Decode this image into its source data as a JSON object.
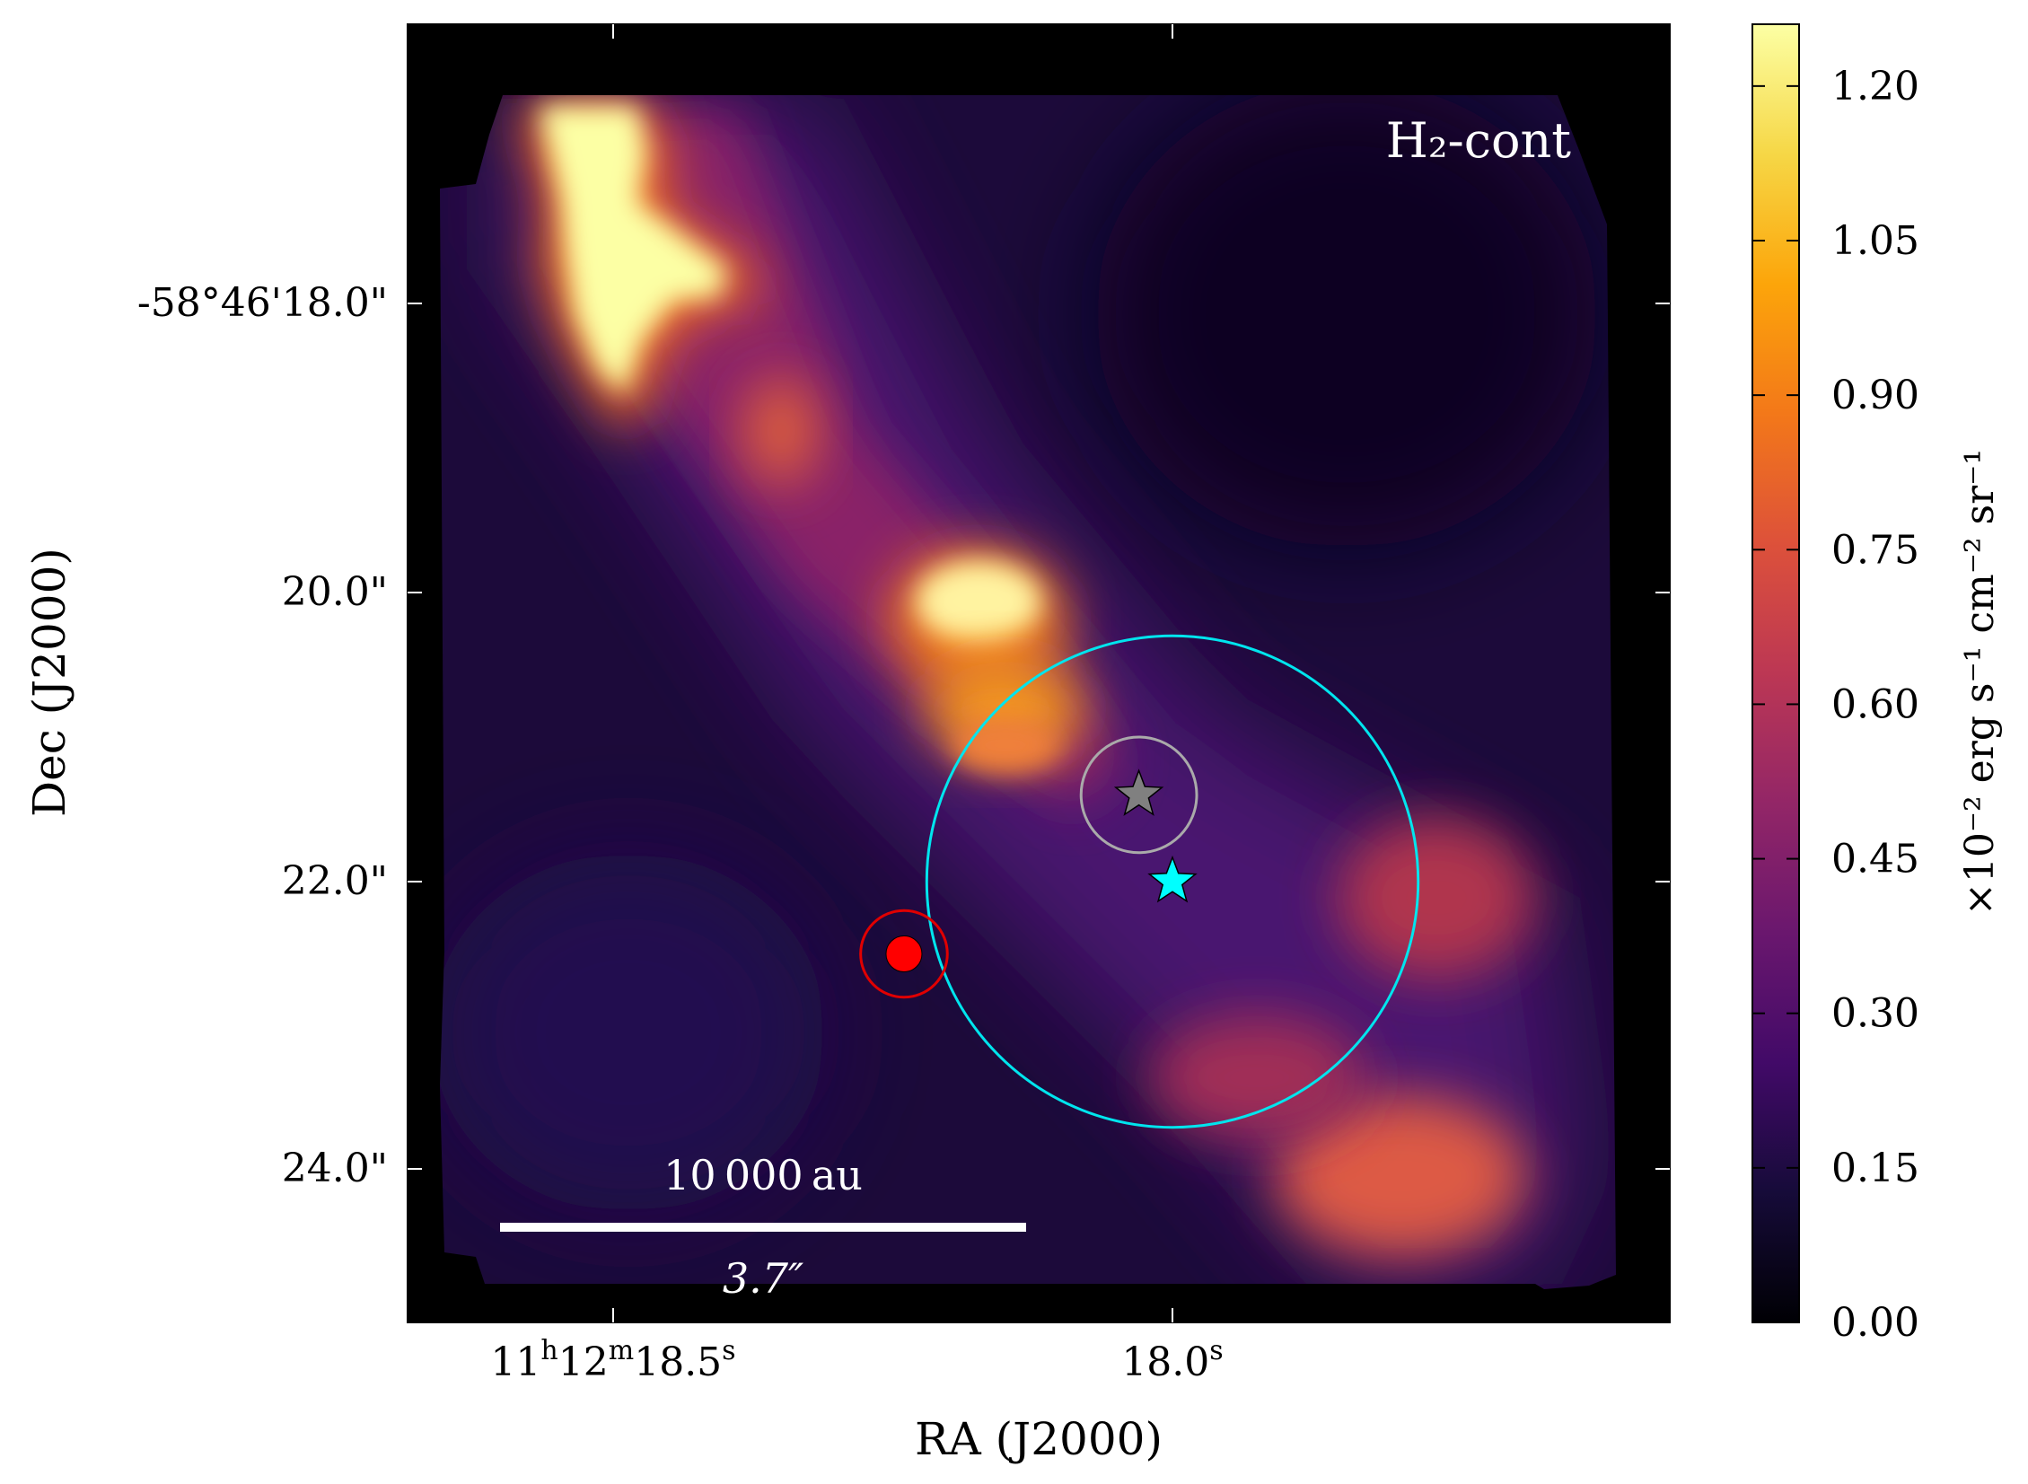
{
  "chart_data": {
    "type": "heatmap",
    "map_label": "H₂-cont",
    "xlabel": "RA (J2000)",
    "ylabel": "Dec (J2000)",
    "x_ticks": [
      {
        "label_main": "11",
        "sup1": "h",
        "mid": "12",
        "sup2": "m",
        "tail": "18.5",
        "sup3": "s"
      },
      {
        "label_main": "",
        "sup1": "",
        "mid": "",
        "sup2": "",
        "tail": "18.0",
        "sup3": "s"
      }
    ],
    "y_ticks": [
      "-58°46'18.0\"",
      "20.0\"",
      "22.0\"",
      "24.0\""
    ],
    "y_tick_values_arcsec": [
      18.0,
      20.0,
      22.0,
      24.0
    ],
    "colorbar": {
      "colormap": "inferno",
      "ticks": [
        "0.00",
        "0.15",
        "0.30",
        "0.45",
        "0.60",
        "0.75",
        "0.90",
        "1.05",
        "1.20"
      ],
      "tick_values": [
        0.0,
        0.15,
        0.3,
        0.45,
        0.6,
        0.75,
        0.9,
        1.05,
        1.2
      ],
      "range": [
        0.0,
        1.26
      ],
      "label": "×10⁻² erg s⁻¹ cm⁻² sr⁻¹"
    },
    "scalebar": {
      "top_label": "10 000 au",
      "bottom_label": "3.7″"
    },
    "markers": [
      {
        "name": "gray-star",
        "ra_s": 18.03,
        "dec_arcsec": 21.4,
        "color": "#808080"
      },
      {
        "name": "cyan-star",
        "ra_s": 18.0,
        "dec_arcsec": 22.0,
        "color": "#00ffff"
      },
      {
        "name": "red-dot",
        "ra_s": 18.24,
        "dec_arcsec": 22.5,
        "color": "#ff0000"
      }
    ],
    "circles": [
      {
        "name": "cyan-circle",
        "ra_s": 18.0,
        "dec_arcsec": 22.0,
        "radius_arcsec": 1.7,
        "color": "#00e5ee"
      },
      {
        "name": "gray-circle",
        "ra_s": 18.03,
        "dec_arcsec": 21.4,
        "radius_arcsec": 0.4,
        "color": "#aaaaaa"
      },
      {
        "name": "red-circle",
        "ra_s": 18.24,
        "dec_arcsec": 22.5,
        "radius_arcsec": 0.3,
        "color": "#e00000"
      }
    ]
  }
}
